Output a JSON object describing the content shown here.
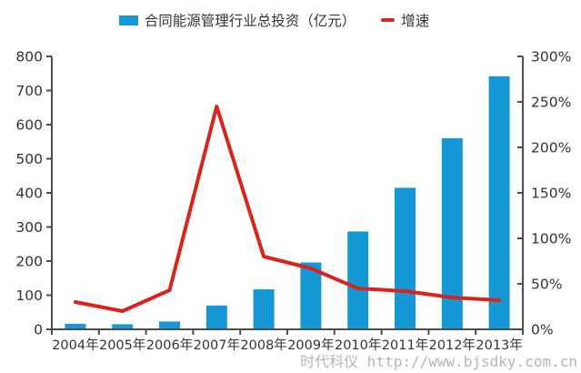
{
  "legend": {
    "investment": "合同能源管理行业总投资（亿元）",
    "growth": "增速"
  },
  "watermark": {
    "text": "时代科仪 http://www.bjsdky.com.cn"
  },
  "colors": {
    "bar": "#1598D5",
    "line": "#D8241A",
    "axis": "#4D4D4D",
    "label": "#333333",
    "watermark": "#B5B5B5"
  },
  "chart_data": {
    "type": "combo",
    "legend_position": "top",
    "grid": false,
    "categories": [
      "2004年",
      "2005年",
      "2006年",
      "2007年",
      "2008年",
      "2009年",
      "2010年",
      "2011年",
      "2012年",
      "2013年"
    ],
    "series": [
      {
        "name": "合同能源管理行业总投资（亿元）",
        "type": "bar",
        "axis": "left",
        "unit": "亿元",
        "values": [
          16,
          15,
          23,
          70,
          117,
          196,
          287,
          415,
          560,
          742
        ]
      },
      {
        "name": "增速",
        "type": "line",
        "axis": "right",
        "unit": "%",
        "values": [
          30,
          20,
          43,
          245,
          80,
          67,
          45,
          42,
          35,
          32
        ]
      }
    ],
    "left_axis": {
      "min": 0,
      "max": 800,
      "step": 100
    },
    "right_axis": {
      "min": 0,
      "max": 300,
      "step": 50,
      "suffix": "%"
    }
  }
}
